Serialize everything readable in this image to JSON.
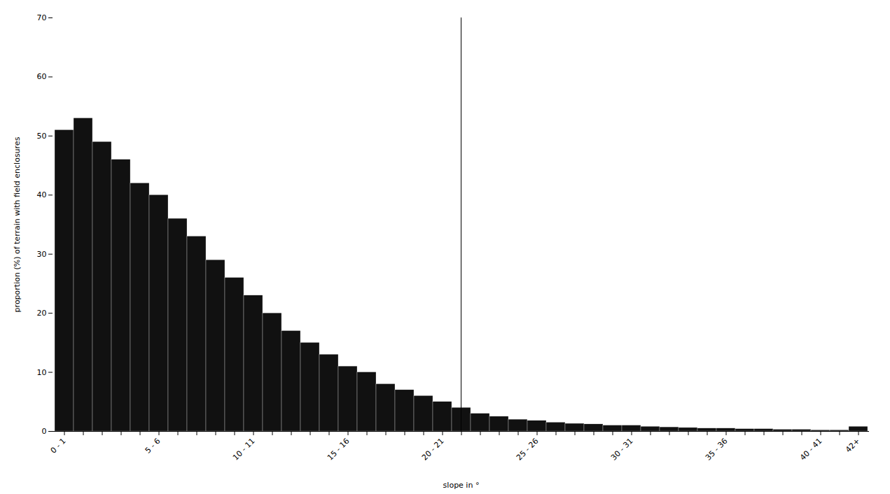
{
  "chart_data": {
    "type": "bar",
    "categories": [
      "0 - 1",
      null,
      null,
      null,
      null,
      "5 - 6",
      null,
      null,
      null,
      null,
      "10 - 11",
      null,
      null,
      null,
      null,
      "15 - 16",
      null,
      null,
      null,
      null,
      "20 - 21",
      null,
      null,
      null,
      null,
      "25 - 26",
      null,
      null,
      null,
      null,
      "30 - 31",
      null,
      null,
      null,
      null,
      "35 - 36",
      null,
      null,
      null,
      null,
      "40 - 41",
      null,
      "42+"
    ],
    "values": [
      51,
      53,
      49,
      46,
      42,
      40,
      36,
      33,
      29,
      26,
      23,
      20,
      17,
      15,
      13,
      11,
      10,
      8,
      7,
      6,
      5,
      4,
      3,
      2.5,
      2,
      1.8,
      1.5,
      1.3,
      1.2,
      1.0,
      1.0,
      0.8,
      0.7,
      0.6,
      0.5,
      0.5,
      0.4,
      0.4,
      0.3,
      0.3,
      0.2,
      0.2,
      0.8
    ],
    "color": "#111111",
    "xlabel": "slope in °",
    "ylabel": "proportion (%) of terrain with field enclosures",
    "ylim": [
      0,
      70
    ],
    "yticks": [
      0,
      10,
      20,
      30,
      40,
      50,
      60,
      70
    ],
    "grid": false
  }
}
